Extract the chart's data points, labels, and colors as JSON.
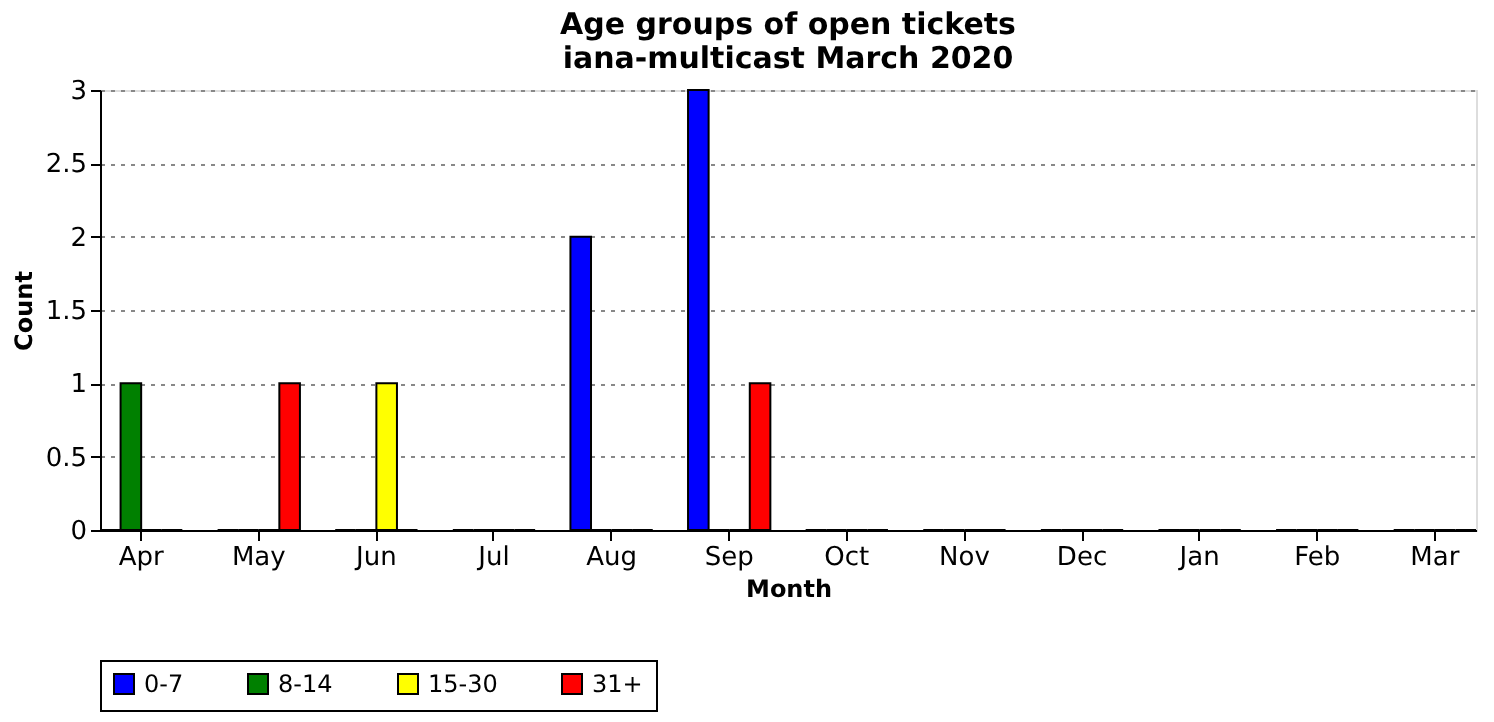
{
  "chart_data": {
    "type": "bar",
    "title": "Age groups of open tickets",
    "subtitle": "iana-multicast March 2020",
    "xlabel": "Month",
    "ylabel": "Count",
    "categories": [
      "Apr",
      "May",
      "Jun",
      "Jul",
      "Aug",
      "Sep",
      "Oct",
      "Nov",
      "Dec",
      "Jan",
      "Feb",
      "Mar"
    ],
    "series": [
      {
        "name": "0-7",
        "color": "#0000ff",
        "values": [
          0,
          0,
          0,
          0,
          2,
          3,
          0,
          0,
          0,
          0,
          0,
          0
        ]
      },
      {
        "name": "8-14",
        "color": "#008000",
        "values": [
          1,
          0,
          0,
          0,
          0,
          0,
          0,
          0,
          0,
          0,
          0,
          0
        ]
      },
      {
        "name": "15-30",
        "color": "#ffff00",
        "values": [
          0,
          0,
          1,
          0,
          0,
          0,
          0,
          0,
          0,
          0,
          0,
          0
        ]
      },
      {
        "name": "31+",
        "color": "#ff0000",
        "values": [
          0,
          1,
          0,
          0,
          0,
          1,
          0,
          0,
          0,
          0,
          0,
          0
        ]
      }
    ],
    "ylim": [
      0,
      3
    ],
    "yticks": [
      0,
      0.5,
      1,
      1.5,
      2,
      2.5,
      3
    ],
    "grid": "y",
    "legend": "bottom"
  }
}
